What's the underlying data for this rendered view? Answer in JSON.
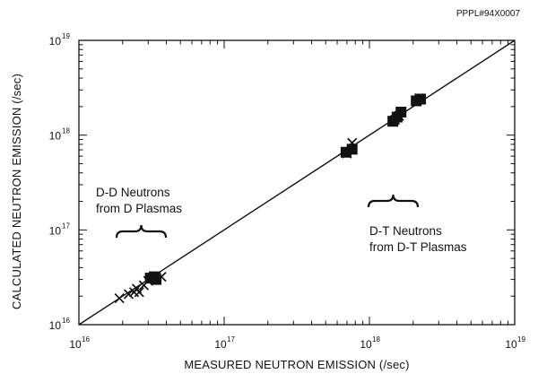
{
  "figure_id": "PPPL#94X0007",
  "chart_data": {
    "type": "scatter",
    "xlabel": "MEASURED NEUTRON EMISSION (/sec)",
    "ylabel": "CALCULATED NEUTRON EMISSION (/sec)",
    "x_scale": "log",
    "y_scale": "log",
    "xlim": [
      1e+16,
      1e+19
    ],
    "ylim": [
      1e+16,
      1e+19
    ],
    "x_ticks": [
      {
        "base": "10",
        "exp": "16",
        "value": 1e+16
      },
      {
        "base": "10",
        "exp": "17",
        "value": 1e+17
      },
      {
        "base": "10",
        "exp": "18",
        "value": 1e+18
      },
      {
        "base": "10",
        "exp": "19",
        "value": 1e+19
      }
    ],
    "y_ticks": [
      {
        "base": "10",
        "exp": "16",
        "value": 1e+16
      },
      {
        "base": "10",
        "exp": "17",
        "value": 1e+17
      },
      {
        "base": "10",
        "exp": "18",
        "value": 1e+18
      },
      {
        "base": "10",
        "exp": "19",
        "value": 1e+19
      }
    ],
    "grid": false,
    "reference_line": {
      "x": [
        1e+16,
        1e+19
      ],
      "y": [
        1e+16,
        1e+19
      ]
    },
    "series": [
      {
        "marker": "x",
        "points": [
          {
            "x": 1.9e+16,
            "y": 1.9e+16
          },
          {
            "x": 2.2e+16,
            "y": 2.1e+16
          },
          {
            "x": 2.4e+16,
            "y": 2.2e+16
          },
          {
            "x": 2.5e+16,
            "y": 2.4e+16
          },
          {
            "x": 2.6e+16,
            "y": 2.2e+16
          },
          {
            "x": 2.8e+16,
            "y": 2.6e+16
          },
          {
            "x": 3e+16,
            "y": 2.9e+16
          },
          {
            "x": 3.2e+16,
            "y": 3.1e+16
          },
          {
            "x": 3.4e+16,
            "y": 3.2e+16
          },
          {
            "x": 3.7e+16,
            "y": 3.2e+16
          },
          {
            "x": 7.6e+17,
            "y": 8.3e+17
          },
          {
            "x": 7e+17,
            "y": 6.4e+17
          },
          {
            "x": 1.5e+18,
            "y": 1.45e+18
          },
          {
            "x": 1.6e+18,
            "y": 1.6e+18
          },
          {
            "x": 2.2e+18,
            "y": 2.45e+18
          }
        ]
      },
      {
        "marker": "square",
        "points": [
          {
            "x": 3.1e+16,
            "y": 3.1e+16
          },
          {
            "x": 3.4e+16,
            "y": 3e+16
          },
          {
            "x": 3.3e+16,
            "y": 3.2e+16
          },
          {
            "x": 6.9e+17,
            "y": 6.6e+17
          },
          {
            "x": 7.6e+17,
            "y": 7.1e+17
          },
          {
            "x": 1.45e+18,
            "y": 1.4e+18
          },
          {
            "x": 1.65e+18,
            "y": 1.75e+18
          },
          {
            "x": 1.55e+18,
            "y": 1.55e+18
          },
          {
            "x": 2.1e+18,
            "y": 2.3e+18
          },
          {
            "x": 2.25e+18,
            "y": 2.4e+18
          }
        ]
      }
    ],
    "annotations": [
      {
        "lines": [
          "D-D Neutrons",
          "from D Plasmas"
        ]
      },
      {
        "lines": [
          "D-T Neutrons",
          "from D-T Plasmas"
        ]
      }
    ]
  }
}
